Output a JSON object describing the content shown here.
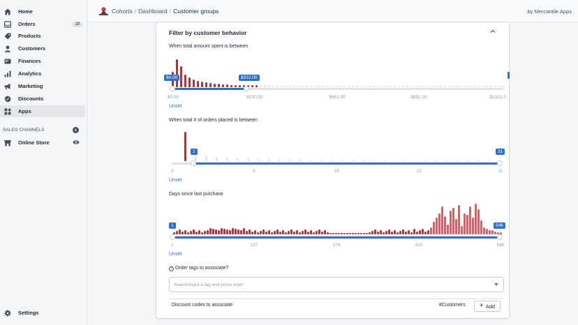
{
  "sidebar": {
    "items": [
      {
        "label": "Home",
        "icon": "home-icon"
      },
      {
        "label": "Orders",
        "icon": "orders-icon",
        "badge": "19"
      },
      {
        "label": "Products",
        "icon": "tag-icon"
      },
      {
        "label": "Customers",
        "icon": "person-icon"
      },
      {
        "label": "Finances",
        "icon": "finances-icon"
      },
      {
        "label": "Analytics",
        "icon": "analytics-icon"
      },
      {
        "label": "Marketing",
        "icon": "megaphone-icon"
      },
      {
        "label": "Discounts",
        "icon": "discount-icon"
      },
      {
        "label": "Apps",
        "icon": "apps-icon"
      }
    ],
    "sales_channels_label": "SALES CHANNELS",
    "online_store_label": "Online Store",
    "settings_label": "Settings"
  },
  "topbar": {
    "breadcrumb": [
      "Cohorts",
      "Dashboard",
      "Customer groups"
    ],
    "separator": "/",
    "by_apps": "by Mercantile Apps"
  },
  "filter": {
    "title": "Filter by customer behavior",
    "accent_color": "#2c6ecb",
    "bar_color": "#9b3b3b",
    "amount": {
      "label": "When total amount spent is between",
      "min_tag": "$0.00",
      "max_tag": "$312.00",
      "ticks": [
        "$0.00",
        "$330.00",
        "$661.00",
        "$991.00",
        "$1321.5"
      ],
      "unset": "Unset",
      "selected_fraction": [
        0,
        0.236
      ]
    },
    "orders": {
      "label": "When total # of orders placed is between",
      "min_tag": "2",
      "max_tag": "31",
      "ticks": [
        "0",
        "8",
        "16",
        "23",
        "31"
      ],
      "unset": "Unset",
      "selected_fraction": [
        0.065,
        1
      ]
    },
    "days": {
      "label": "Days since last purchase",
      "min_tag": "1",
      "max_tag": "546",
      "ticks": [
        "1",
        "137",
        "274",
        "410",
        "546"
      ],
      "unset": "Unset",
      "selected_fraction": [
        0,
        1
      ]
    }
  },
  "tags": {
    "label": "Order tags to associate?",
    "placeholder": "Search/input a tag and press enter"
  },
  "discounts": {
    "label": "Discount codes to associate",
    "tag": "#Customers",
    "add_label": "Add"
  }
}
